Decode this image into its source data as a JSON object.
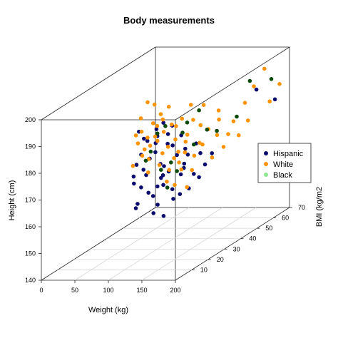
{
  "chart_data": {
    "type": "scatter3d",
    "title": "Body measurements",
    "xlabel": "Weight (kg)",
    "ylabel": "BMI (kg/m2",
    "zlabel": "Height (cm)",
    "xlim": [
      0,
      200
    ],
    "ylim": [
      0,
      70
    ],
    "zlim": [
      140,
      200
    ],
    "xticks": [
      "0",
      "50",
      "100",
      "150",
      "200"
    ],
    "yticks": [
      "10",
      "20",
      "30",
      "40",
      "50",
      "60",
      "70"
    ],
    "zticks": [
      "140",
      "150",
      "160",
      "170",
      "180",
      "190",
      "200"
    ],
    "grid": true,
    "legend_position": "right",
    "series": [
      {
        "name": "Hispanic",
        "color": "#0b0b6e",
        "points": [
          [
            92,
            22,
            187
          ],
          [
            105,
            28,
            183
          ],
          [
            118,
            32,
            178
          ],
          [
            96,
            27,
            175
          ],
          [
            110,
            30,
            171
          ],
          [
            125,
            36,
            168
          ],
          [
            88,
            25,
            165
          ],
          [
            140,
            40,
            172
          ],
          [
            132,
            34,
            176
          ],
          [
            100,
            29,
            180
          ],
          [
            115,
            33,
            185
          ],
          [
            98,
            24,
            170
          ],
          [
            120,
            31,
            162
          ],
          [
            85,
            23,
            158
          ],
          [
            108,
            29,
            167
          ],
          [
            112,
            27,
            173
          ],
          [
            95,
            26,
            182
          ],
          [
            128,
            35,
            170
          ],
          [
            135,
            38,
            165
          ],
          [
            102,
            28,
            177
          ],
          [
            90,
            22,
            160
          ],
          [
            117,
            30,
            169
          ],
          [
            122,
            33,
            174
          ],
          [
            106,
            27,
            186
          ],
          [
            99,
            25,
            163
          ],
          [
            130,
            37,
            160
          ],
          [
            87,
            21,
            168
          ],
          [
            113,
            31,
            179
          ],
          [
            142,
            42,
            167
          ],
          [
            94,
            24,
            172
          ],
          [
            104,
            26,
            155
          ],
          [
            119,
            32,
            158
          ],
          [
            126,
            34,
            181
          ],
          [
            97,
            23,
            184
          ],
          [
            109,
            30,
            164
          ],
          [
            136,
            39,
            176
          ],
          [
            89,
            20,
            171
          ],
          [
            123,
            35,
            166
          ],
          [
            101,
            27,
            161
          ],
          [
            114,
            28,
            188
          ],
          [
            131,
            36,
            173
          ],
          [
            93,
            23,
            178
          ],
          [
            107,
            31,
            152
          ],
          [
            145,
            45,
            170
          ],
          [
            103,
            29,
            157
          ],
          [
            116,
            30,
            183
          ],
          [
            91,
            21,
            175
          ],
          [
            124,
            34,
            159
          ],
          [
            111,
            29,
            168
          ],
          [
            138,
            40,
            163
          ],
          [
            175,
            60,
            188
          ],
          [
            188,
            66,
            182
          ],
          [
            110,
            26,
            165
          ]
        ]
      },
      {
        "name": "White",
        "color": "#ff9400",
        "points": [
          [
            105,
            22,
            198
          ],
          [
            118,
            26,
            190
          ],
          [
            95,
            22,
            192
          ],
          [
            128,
            30,
            186
          ],
          [
            112,
            25,
            188
          ],
          [
            140,
            32,
            182
          ],
          [
            100,
            24,
            184
          ],
          [
            122,
            28,
            194
          ],
          [
            135,
            33,
            179
          ],
          [
            90,
            21,
            186
          ],
          [
            150,
            36,
            184
          ],
          [
            115,
            27,
            177
          ],
          [
            108,
            25,
            196
          ],
          [
            145,
            40,
            190
          ],
          [
            125,
            30,
            174
          ],
          [
            98,
            23,
            180
          ],
          [
            132,
            32,
            188
          ],
          [
            160,
            42,
            178
          ],
          [
            110,
            26,
            182
          ],
          [
            138,
            35,
            192
          ],
          [
            102,
            24,
            176
          ],
          [
            120,
            29,
            170
          ],
          [
            155,
            45,
            186
          ],
          [
            93,
            21,
            183
          ],
          [
            130,
            31,
            172
          ],
          [
            148,
            38,
            176
          ],
          [
            117,
            27,
            185
          ],
          [
            165,
            50,
            180
          ],
          [
            106,
            25,
            189
          ],
          [
            142,
            34,
            168
          ],
          [
            127,
            30,
            181
          ],
          [
            97,
            22,
            178
          ],
          [
            134,
            33,
            175
          ],
          [
            158,
            44,
            183
          ],
          [
            113,
            26,
            173
          ],
          [
            139,
            36,
            186
          ],
          [
            101,
            24,
            171
          ],
          [
            170,
            55,
            185
          ],
          [
            124,
            29,
            187
          ],
          [
            152,
            40,
            181
          ],
          [
            88,
            20,
            175
          ],
          [
            119,
            28,
            166
          ],
          [
            146,
            37,
            177
          ],
          [
            109,
            25,
            184
          ],
          [
            162,
            48,
            176
          ],
          [
            131,
            32,
            169
          ],
          [
            96,
            22,
            187
          ],
          [
            143,
            35,
            173
          ],
          [
            176,
            58,
            190
          ],
          [
            121,
            28,
            179
          ],
          [
            137,
            33,
            162
          ],
          [
            104,
            24,
            181
          ],
          [
            168,
            52,
            174
          ],
          [
            129,
            31,
            176
          ],
          [
            155,
            41,
            170
          ],
          [
            115,
            26,
            192
          ],
          [
            182,
            62,
            195
          ],
          [
            190,
            68,
            187
          ],
          [
            172,
            56,
            178
          ],
          [
            160,
            46,
            172
          ],
          [
            185,
            64,
            182
          ],
          [
            126,
            30,
            164
          ]
        ]
      },
      {
        "name": "Black",
        "color": "#0c4a0c",
        "points": [
          [
            112,
            30,
            186
          ],
          [
            128,
            34,
            182
          ],
          [
            100,
            26,
            178
          ],
          [
            135,
            38,
            176
          ],
          [
            118,
            31,
            172
          ],
          [
            105,
            28,
            184
          ],
          [
            145,
            42,
            180
          ],
          [
            95,
            25,
            175
          ],
          [
            122,
            33,
            168
          ],
          [
            138,
            40,
            188
          ],
          [
            108,
            29,
            170
          ],
          [
            150,
            46,
            178
          ],
          [
            130,
            36,
            185
          ],
          [
            115,
            30,
            163
          ],
          [
            170,
            58,
            192
          ],
          [
            185,
            65,
            190
          ],
          [
            165,
            52,
            181
          ]
        ]
      }
    ]
  }
}
